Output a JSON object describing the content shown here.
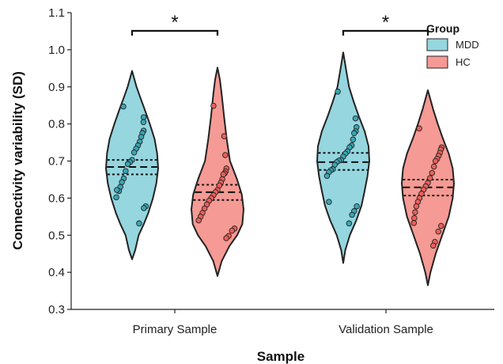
{
  "chart_data": {
    "type": "violin",
    "xlabel": "Sample",
    "ylabel": "Connectivity variability (SD)",
    "ylim": [
      0.3,
      1.1
    ],
    "yticks": [
      "0.3",
      "0.4",
      "0.5",
      "0.6",
      "0.7",
      "0.8",
      "0.9",
      "1.0",
      "1.1"
    ],
    "categories": [
      "Primary Sample",
      "Validation Sample"
    ],
    "legend": {
      "title": "Group",
      "position": "top-right",
      "entries": [
        "MDD",
        "HC"
      ]
    },
    "colors": {
      "MDD": "#95d6df",
      "HC": "#f59a94",
      "MDD_point": "#3aa6b4",
      "HC_point": "#e9605c"
    },
    "grid": false,
    "significance": [
      {
        "category": "Primary Sample",
        "label": "*"
      },
      {
        "category": "Validation Sample",
        "label": "*"
      }
    ],
    "groups": [
      {
        "category": "Primary Sample",
        "series": "MDD",
        "min": 0.435,
        "max": 0.943,
        "quartiles": [
          0.664,
          0.684,
          0.703
        ],
        "profile": [
          [
            0.435,
            0.0
          ],
          [
            0.46,
            0.12
          ],
          [
            0.5,
            0.25
          ],
          [
            0.53,
            0.45
          ],
          [
            0.56,
            0.62
          ],
          [
            0.6,
            0.8
          ],
          [
            0.64,
            0.93
          ],
          [
            0.68,
            1.0
          ],
          [
            0.72,
            0.96
          ],
          [
            0.76,
            0.86
          ],
          [
            0.8,
            0.68
          ],
          [
            0.84,
            0.48
          ],
          [
            0.87,
            0.32
          ],
          [
            0.9,
            0.17
          ],
          [
            0.943,
            0.0
          ]
        ],
        "points": [
          0.847,
          0.818,
          0.805,
          0.782,
          0.775,
          0.765,
          0.752,
          0.742,
          0.733,
          0.723,
          0.703,
          0.697,
          0.692,
          0.673,
          0.653,
          0.643,
          0.63,
          0.619,
          0.622,
          0.602,
          0.578,
          0.573,
          0.532
        ]
      },
      {
        "category": "Primary Sample",
        "series": "HC",
        "min": 0.39,
        "max": 0.952,
        "quartiles": [
          0.595,
          0.616,
          0.636
        ],
        "profile": [
          [
            0.39,
            0.0
          ],
          [
            0.43,
            0.16
          ],
          [
            0.47,
            0.45
          ],
          [
            0.5,
            0.75
          ],
          [
            0.53,
            0.95
          ],
          [
            0.57,
            1.0
          ],
          [
            0.61,
            0.93
          ],
          [
            0.65,
            0.75
          ],
          [
            0.7,
            0.48
          ],
          [
            0.76,
            0.35
          ],
          [
            0.82,
            0.25
          ],
          [
            0.88,
            0.16
          ],
          [
            0.92,
            0.09
          ],
          [
            0.952,
            0.0
          ]
        ],
        "points": [
          0.849,
          0.767,
          0.716,
          0.68,
          0.672,
          0.667,
          0.664,
          0.651,
          0.642,
          0.634,
          0.622,
          0.616,
          0.608,
          0.6,
          0.593,
          0.583,
          0.572,
          0.56,
          0.55,
          0.54,
          0.518,
          0.512,
          0.498,
          0.492
        ]
      },
      {
        "category": "Validation Sample",
        "series": "MDD",
        "min": 0.425,
        "max": 0.993,
        "quartiles": [
          0.676,
          0.697,
          0.722
        ],
        "profile": [
          [
            0.425,
            0.0
          ],
          [
            0.46,
            0.08
          ],
          [
            0.5,
            0.25
          ],
          [
            0.54,
            0.5
          ],
          [
            0.58,
            0.7
          ],
          [
            0.62,
            0.82
          ],
          [
            0.66,
            0.93
          ],
          [
            0.7,
            1.0
          ],
          [
            0.74,
            0.97
          ],
          [
            0.78,
            0.82
          ],
          [
            0.82,
            0.6
          ],
          [
            0.86,
            0.4
          ],
          [
            0.9,
            0.22
          ],
          [
            0.95,
            0.1
          ],
          [
            0.993,
            0.0
          ]
        ],
        "points": [
          0.887,
          0.815,
          0.791,
          0.78,
          0.775,
          0.758,
          0.742,
          0.737,
          0.726,
          0.72,
          0.712,
          0.703,
          0.701,
          0.697,
          0.69,
          0.678,
          0.675,
          0.67,
          0.66,
          0.59,
          0.578,
          0.565,
          0.555,
          0.532
        ]
      },
      {
        "category": "Validation Sample",
        "series": "HC",
        "min": 0.365,
        "max": 0.891,
        "quartiles": [
          0.607,
          0.629,
          0.65
        ],
        "profile": [
          [
            0.365,
            0.0
          ],
          [
            0.4,
            0.1
          ],
          [
            0.45,
            0.3
          ],
          [
            0.5,
            0.55
          ],
          [
            0.55,
            0.8
          ],
          [
            0.6,
            0.95
          ],
          [
            0.64,
            1.0
          ],
          [
            0.68,
            0.95
          ],
          [
            0.72,
            0.8
          ],
          [
            0.76,
            0.58
          ],
          [
            0.8,
            0.38
          ],
          [
            0.84,
            0.2
          ],
          [
            0.891,
            0.0
          ]
        ],
        "points": [
          0.788,
          0.737,
          0.731,
          0.722,
          0.714,
          0.706,
          0.7,
          0.685,
          0.668,
          0.654,
          0.641,
          0.632,
          0.623,
          0.612,
          0.6,
          0.59,
          0.578,
          0.562,
          0.546,
          0.533,
          0.525,
          0.51,
          0.482,
          0.472
        ]
      }
    ]
  }
}
